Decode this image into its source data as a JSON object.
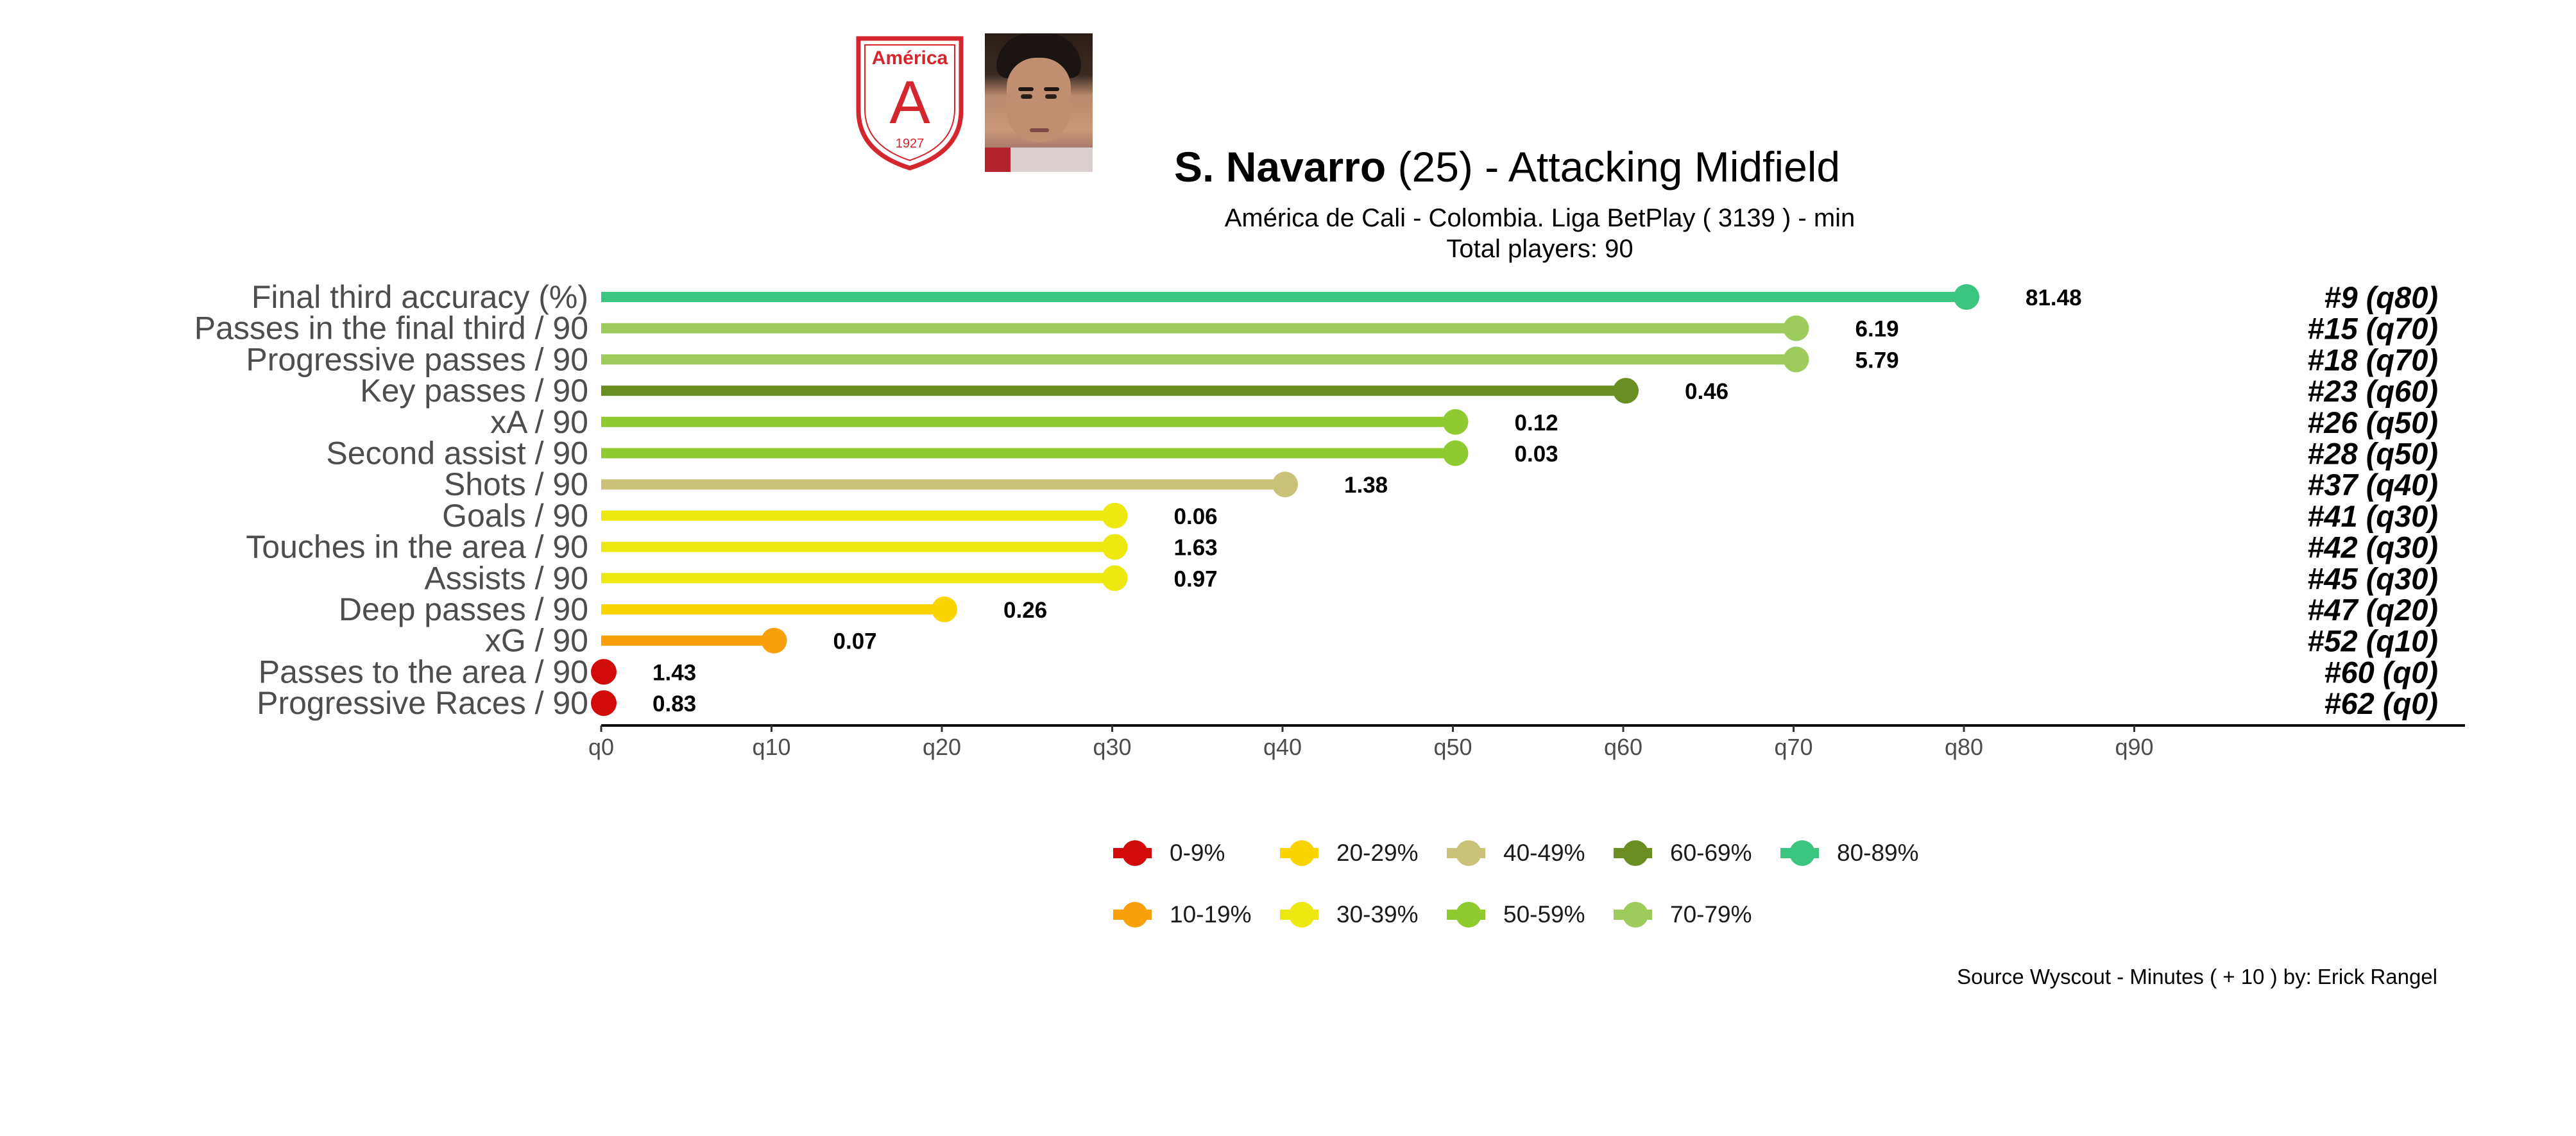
{
  "header": {
    "player_name": "S. Navarro",
    "player_age": "(25) -",
    "position": "Attacking Midfield",
    "team_line": "América de Cali  -  Colombia. Liga BetPlay  ( 3139 ) - min",
    "total_players": "Total players:  90",
    "crest_text": "América",
    "crest_letter": "A",
    "crest_year": "1927"
  },
  "chart_data": {
    "type": "lollipop",
    "x_axis": {
      "ticks": [
        "q0",
        "q10",
        "q20",
        "q30",
        "q40",
        "q50",
        "q60",
        "q70",
        "q80",
        "q90"
      ],
      "range": [
        0,
        100
      ]
    },
    "grid": false,
    "legend_position": "bottom",
    "metrics": [
      {
        "label": "Final third accuracy (%)",
        "percentile": 80,
        "value": "81.48",
        "rank": "#9 (q80)",
        "color": "#3cc57f"
      },
      {
        "label": "Passes in the final third / 90",
        "percentile": 70,
        "value": "6.19",
        "rank": "#15 (q70)",
        "color": "#9dcc5c"
      },
      {
        "label": "Progressive passes / 90",
        "percentile": 70,
        "value": "5.79",
        "rank": "#18 (q70)",
        "color": "#9dcc5c"
      },
      {
        "label": "Key passes / 90",
        "percentile": 60,
        "value": "0.46",
        "rank": "#23 (q60)",
        "color": "#6b8e23"
      },
      {
        "label": "xA / 90",
        "percentile": 50,
        "value": "0.12",
        "rank": "#26 (q50)",
        "color": "#8fcb30"
      },
      {
        "label": "Second assist / 90",
        "percentile": 50,
        "value": "0.03",
        "rank": "#28 (q50)",
        "color": "#8fcb30"
      },
      {
        "label": "Shots / 90",
        "percentile": 40,
        "value": "1.38",
        "rank": "#37 (q40)",
        "color": "#cbc27a"
      },
      {
        "label": "Goals / 90",
        "percentile": 30,
        "value": "0.06",
        "rank": "#41 (q30)",
        "color": "#ede810"
      },
      {
        "label": "Touches in the area / 90",
        "percentile": 30,
        "value": "1.63",
        "rank": "#42 (q30)",
        "color": "#ede810"
      },
      {
        "label": "Assists / 90",
        "percentile": 30,
        "value": "0.97",
        "rank": "#45 (q30)",
        "color": "#ede810"
      },
      {
        "label": "Deep passes / 90",
        "percentile": 20,
        "value": "0.26",
        "rank": "#47 (q20)",
        "color": "#f9d400"
      },
      {
        "label": "xG / 90",
        "percentile": 10,
        "value": "0.07",
        "rank": "#52 (q10)",
        "color": "#f9a10c"
      },
      {
        "label": "Passes to the area / 90",
        "percentile": 0,
        "value": "1.43",
        "rank": "#60 (q0)",
        "color": "#d10a0a"
      },
      {
        "label": "Progressive Races / 90",
        "percentile": 0,
        "value": "0.83",
        "rank": "#62 (q0)",
        "color": "#d10a0a"
      }
    ],
    "legend": [
      {
        "label": "0-9%",
        "color": "#d10a0a"
      },
      {
        "label": "10-19%",
        "color": "#f9a10c"
      },
      {
        "label": "20-29%",
        "color": "#f9d400"
      },
      {
        "label": "30-39%",
        "color": "#ede810"
      },
      {
        "label": "40-49%",
        "color": "#cbc27a"
      },
      {
        "label": "50-59%",
        "color": "#8fcb30"
      },
      {
        "label": "60-69%",
        "color": "#6b8e23"
      },
      {
        "label": "70-79%",
        "color": "#9dcc5c"
      },
      {
        "label": "80-89%",
        "color": "#3cc57f"
      }
    ]
  },
  "footer": {
    "source": "Source Wyscout - Minutes ( + 10 ) by: Erick Rangel"
  }
}
